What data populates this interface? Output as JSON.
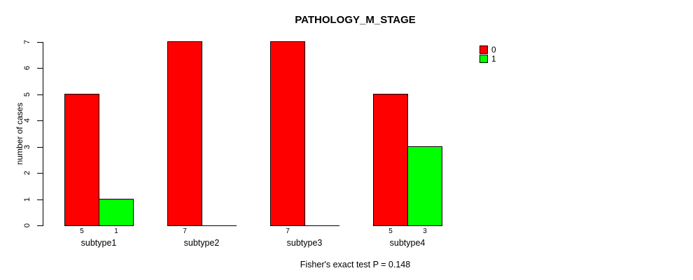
{
  "title": "PATHOLOGY_M_STAGE",
  "ylabel": "number of cases",
  "annotation": "Fisher's exact test P = 0.148",
  "colors": {
    "series0": "#FF0000",
    "series1": "#00FF00",
    "axis": "#000000",
    "background": "#FFFFFF"
  },
  "legend": {
    "position": "top-right",
    "entries": [
      "0",
      "1"
    ]
  },
  "chart_data": {
    "type": "bar",
    "grouped": true,
    "title": "PATHOLOGY_M_STAGE",
    "xlabel": "",
    "ylabel": "number of cases",
    "categories": [
      "subtype1",
      "subtype2",
      "subtype3",
      "subtype4"
    ],
    "series": [
      {
        "name": "0",
        "color": "#FF0000",
        "values": [
          5,
          7,
          7,
          5
        ]
      },
      {
        "name": "1",
        "color": "#00FF00",
        "values": [
          1,
          0,
          0,
          3
        ]
      }
    ],
    "bar_value_labels": [
      [
        "5",
        "1"
      ],
      [
        "7",
        ""
      ],
      [
        "7",
        ""
      ],
      [
        "5",
        "3"
      ]
    ],
    "yticks": [
      0,
      1,
      2,
      3,
      4,
      5,
      6,
      7
    ],
    "ylim": [
      0,
      7
    ],
    "grid": false,
    "legend_position": "top-right",
    "annotation": "Fisher's exact test P = 0.148"
  }
}
